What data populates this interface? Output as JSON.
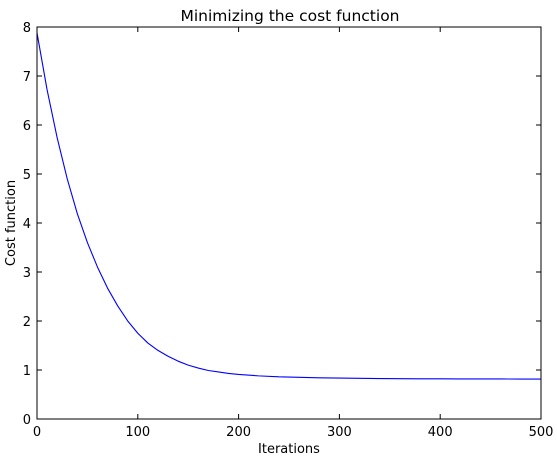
{
  "chart_data": {
    "type": "line",
    "title": "Minimizing the cost function",
    "xlabel": "Iterations",
    "ylabel": "Cost function",
    "xlim": [
      0,
      500
    ],
    "ylim": [
      0,
      8
    ],
    "xticks": [
      0,
      100,
      200,
      300,
      400,
      500
    ],
    "yticks": [
      0,
      1,
      2,
      3,
      4,
      5,
      6,
      7,
      8
    ],
    "grid": false,
    "series": [
      {
        "color": "#0000ff",
        "x": [
          0,
          10,
          20,
          30,
          40,
          50,
          60,
          70,
          80,
          90,
          100,
          110,
          120,
          130,
          140,
          150,
          160,
          170,
          180,
          190,
          200,
          220,
          240,
          260,
          280,
          300,
          320,
          340,
          360,
          380,
          400,
          420,
          440,
          460,
          480,
          500
        ],
        "y": [
          7.88,
          6.72,
          5.74,
          4.9,
          4.19,
          3.6,
          3.1,
          2.67,
          2.31,
          2.0,
          1.75,
          1.55,
          1.4,
          1.28,
          1.18,
          1.1,
          1.04,
          0.99,
          0.96,
          0.93,
          0.91,
          0.88,
          0.86,
          0.85,
          0.84,
          0.835,
          0.83,
          0.825,
          0.822,
          0.82,
          0.82,
          0.818,
          0.817,
          0.817,
          0.816,
          0.815
        ]
      }
    ]
  }
}
